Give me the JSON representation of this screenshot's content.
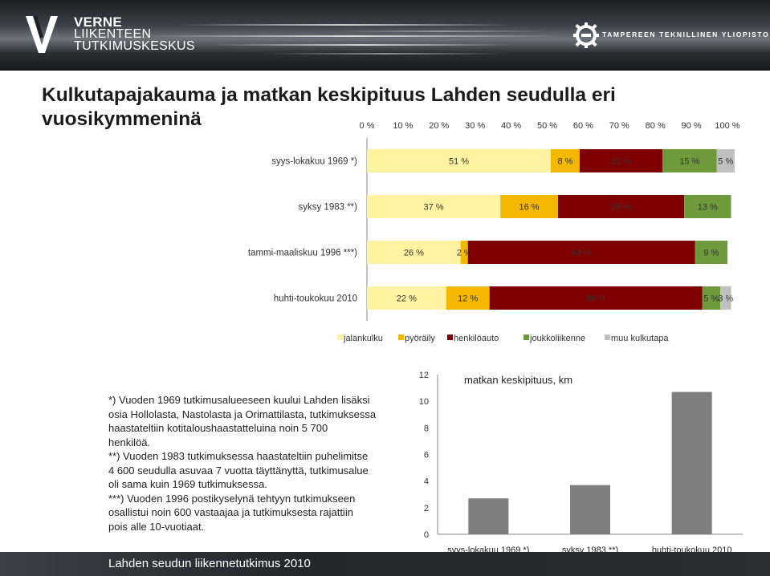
{
  "header": {
    "brand_lines": [
      "VERNE",
      "LIIKENTEEN",
      "TUTKIMUSKESKUS"
    ],
    "university": "TAMPEREEN TEKNILLINEN YLIOPISTO"
  },
  "slide": {
    "title_line1": "Kulkutapajakauma ja matkan keskipituus Lahden seudulla eri",
    "title_line2": "vuosikymmeninä",
    "notes": [
      "*) Vuoden 1969 tutkimusalueeseen kuului Lahden lisäksi",
      "osia Hollolasta, Nastolasta ja Orimattilasta, tutkimuksessa",
      "haastateltiin kotitaloushaastatteluina noin 5 700",
      "henkilöä.",
      "**) Vuoden 1983 tutkimuksessa haastateltiin puhelimitse",
      "4 600 seudulla asuvaa 7 vuotta täyttänyttä, tutkimusalue",
      "oli sama kuin 1969 tutkimuksessa.",
      "***) Vuoden 1996 postikyselynä tehtyyn tutkimukseen",
      "osallistui noin 600 vastaajaa ja tutkimuksesta rajattiin",
      "pois alle 10-vuotiaat."
    ],
    "footer": "Lahden seudun liikennetutkimus 2010"
  },
  "chart_data": [
    {
      "type": "bar",
      "orientation": "horizontal",
      "stacked": true,
      "title": "",
      "xlim": [
        0,
        100
      ],
      "x_ticks": [
        "0 %",
        "10 %",
        "20 %",
        "30 %",
        "40 %",
        "50 %",
        "60 %",
        "70 %",
        "80 %",
        "90 %",
        "100 %"
      ],
      "x_tick_values": [
        0,
        10,
        20,
        30,
        40,
        50,
        60,
        70,
        80,
        90,
        100
      ],
      "x_axis_position": "top",
      "legend_position": "bottom",
      "categories": [
        "syys-lokakuu 1969 *)",
        "syksy 1983 **)",
        "tammi-maaliskuu 1996 ***)",
        "huhti-toukokuu 2010"
      ],
      "series": [
        {
          "name": "jalankulku",
          "color": "#FFF2A0",
          "values": [
            51,
            37,
            26,
            22
          ],
          "labels": [
            "51 %",
            "37 %",
            "26 %",
            "22 %"
          ]
        },
        {
          "name": "pyöräily",
          "color": "#F5B800",
          "values": [
            8,
            16,
            2,
            12
          ],
          "labels": [
            "8 %",
            "16 %",
            "2 %",
            "12 %"
          ]
        },
        {
          "name": "henkilöauto",
          "color": "#7F0000",
          "values": [
            23,
            35,
            63,
            59
          ],
          "labels": [
            "23 %",
            "35 %",
            "63 %",
            "59 %"
          ]
        },
        {
          "name": "joukkoliikenne",
          "color": "#6E9A3C",
          "values": [
            15,
            13,
            9,
            5
          ],
          "labels": [
            "15 %",
            "13 %",
            "9 %",
            "5 %"
          ]
        },
        {
          "name": "muu kulkutapa",
          "color": "#C0C0C0",
          "values": [
            5,
            0,
            0,
            3
          ],
          "labels": [
            "5 %",
            "",
            "",
            "3 %"
          ]
        }
      ]
    },
    {
      "type": "bar",
      "title": "matkan keskipituus, km",
      "categories": [
        "syys-lokakuu 1969 *)",
        "syksy 1983 **)",
        "huhti-toukokuu 2010"
      ],
      "values": [
        2.7,
        3.7,
        10.7
      ],
      "ylim": [
        0,
        12
      ],
      "y_ticks": [
        "0",
        "2",
        "4",
        "6",
        "8",
        "10",
        "12"
      ],
      "y_tick_values": [
        0,
        2,
        4,
        6,
        8,
        10,
        12
      ],
      "color": "#7F7F7F"
    }
  ]
}
